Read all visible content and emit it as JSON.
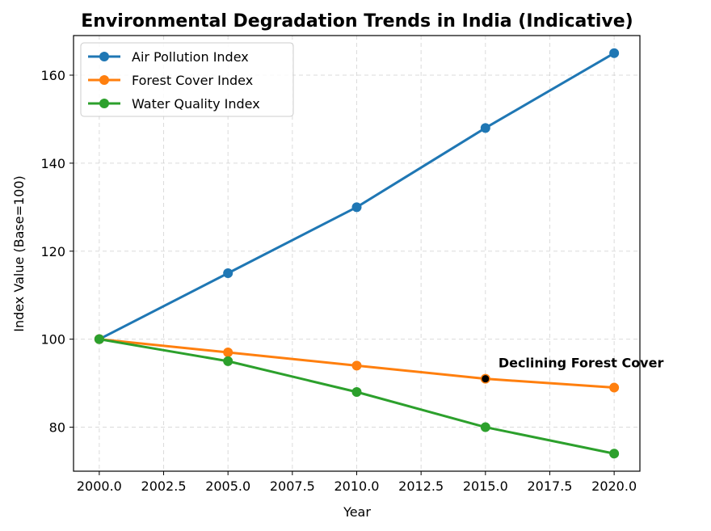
{
  "chart_data": {
    "type": "line",
    "title": "Environmental Degradation Trends in India (Indicative)",
    "xlabel": "Year",
    "ylabel": "Index Value (Base=100)",
    "x": [
      2000,
      2005,
      2010,
      2015,
      2020
    ],
    "xlim": [
      1999,
      2021
    ],
    "ylim": [
      70,
      169
    ],
    "xticks": [
      2000,
      2002.5,
      2005,
      2007.5,
      2010,
      2012.5,
      2015,
      2017.5,
      2020
    ],
    "xtick_labels": [
      "2000.0",
      "2002.5",
      "2005.0",
      "2007.5",
      "2010.0",
      "2012.5",
      "2015.0",
      "2017.5",
      "2020.0"
    ],
    "yticks": [
      80,
      100,
      120,
      140,
      160
    ],
    "ytick_labels": [
      "80",
      "100",
      "120",
      "140",
      "160"
    ],
    "grid": true,
    "legend_position": "top-left",
    "series": [
      {
        "name": "Air Pollution Index",
        "color": "#1f77b4",
        "values": [
          100,
          115,
          130,
          148,
          165
        ]
      },
      {
        "name": "Forest Cover Index",
        "color": "#ff7f0e",
        "values": [
          100,
          97,
          94,
          91,
          89
        ]
      },
      {
        "name": "Water Quality Index",
        "color": "#2ca02c",
        "values": [
          100,
          95,
          88,
          80,
          74
        ]
      }
    ],
    "annotations": [
      {
        "text": "Declining Forest Cover",
        "x": 2015,
        "y": 91,
        "marker_color": "#000000"
      }
    ]
  }
}
